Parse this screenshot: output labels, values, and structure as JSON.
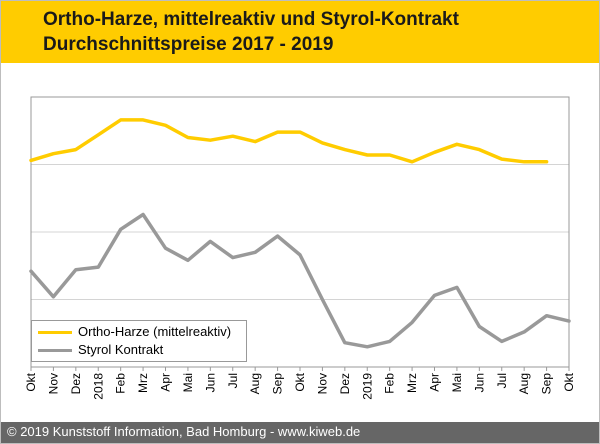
{
  "header": {
    "title_line1": "Ortho-Harze, mittelreaktiv und Styrol-Kontrakt",
    "title_line2": "Durchschnittspreise 2017 - 2019",
    "background_color": "#ffcc00"
  },
  "footer": {
    "copyright": "© 2019 Kunststoff Information, Bad Homburg - www.kiweb.de",
    "background_color": "#666666"
  },
  "chart_data": {
    "type": "line",
    "title": "",
    "xlabel": "",
    "ylabel": "",
    "x": [
      "Okt",
      "Nov",
      "Dez",
      "2018",
      "Feb",
      "Mrz",
      "Apr",
      "Mai",
      "Jun",
      "Jul",
      "Aug",
      "Sep",
      "Okt",
      "Nov",
      "Dez",
      "2019",
      "Feb",
      "Mrz",
      "Apr",
      "Mai",
      "Jun",
      "Jul",
      "Aug",
      "Sep",
      "Okt"
    ],
    "ylim": [
      0,
      100
    ],
    "y_ticks_labeled": false,
    "grid": "horizontal",
    "legend_placement": "bottom-left",
    "series": [
      {
        "name": "Ortho-Harze (mittelreaktiv)",
        "color": "#ffcc00",
        "values": [
          76.5,
          79,
          80.5,
          86,
          91.5,
          91.5,
          89.5,
          85,
          84,
          85.5,
          83.5,
          87,
          87,
          83,
          80.5,
          78.5,
          78.5,
          76,
          79.5,
          82.5,
          80.5,
          77,
          76,
          76,
          null
        ]
      },
      {
        "name": "Styrol Kontrakt",
        "color": "#999999",
        "values": [
          35.5,
          26,
          36,
          37,
          51,
          56.5,
          44,
          39.5,
          46.5,
          40.5,
          42.5,
          48.5,
          41.5,
          25,
          9,
          7.5,
          9.5,
          16.5,
          26.5,
          29.5,
          15,
          9.5,
          13,
          19,
          17
        ]
      }
    ]
  }
}
